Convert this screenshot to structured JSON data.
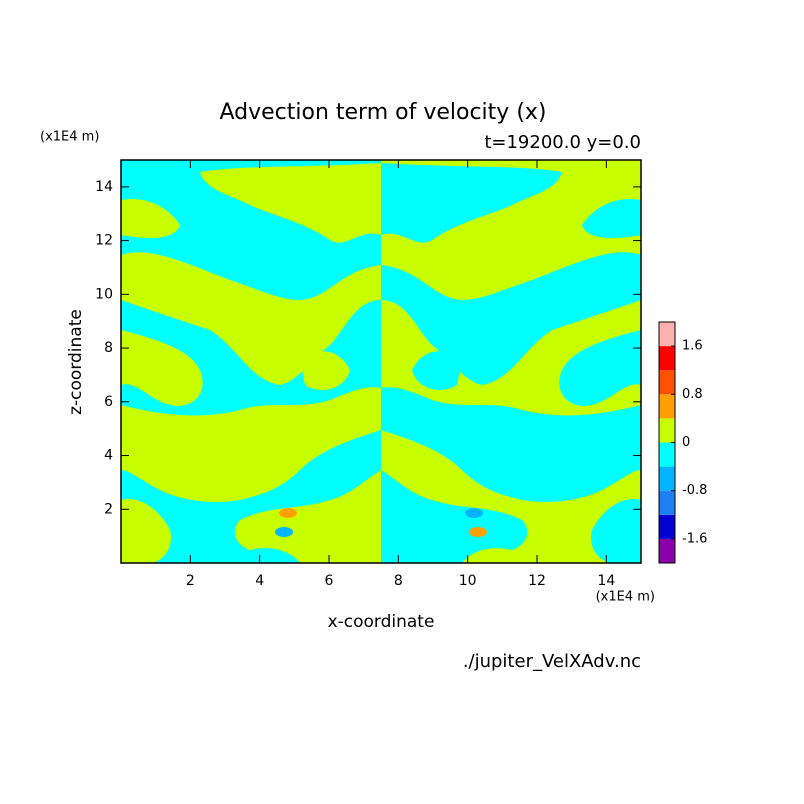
{
  "chart_data": {
    "type": "contour",
    "title": "Advection term of velocity (x)",
    "subtitle": "t=19200.0 y=0.0",
    "xlabel": "x-coordinate",
    "ylabel": "z-coordinate",
    "x_unit": "(x1E4 m)",
    "y_unit": "(x1E4 m)",
    "footer": "./jupiter_VelXAdv.nc",
    "xlim": [
      0,
      15
    ],
    "ylim": [
      0,
      15
    ],
    "xticks": [
      2,
      4,
      6,
      8,
      10,
      12,
      14
    ],
    "yticks": [
      2,
      4,
      6,
      8,
      10,
      12,
      14
    ],
    "levels": [
      -2.0,
      -1.6,
      -1.2,
      -0.8,
      -0.4,
      0,
      0.4,
      0.8,
      1.2,
      1.6,
      2.0
    ],
    "colors": [
      "#8a00a8",
      "#0000d0",
      "#1e7ff0",
      "#00b4ff",
      "#00ffff",
      "#c8ff00",
      "#ffa000",
      "#ff5000",
      "#ff0000",
      "#ffb0b0"
    ],
    "colorbar_ticks": [
      -1.6,
      -0.8,
      0,
      0.8,
      1.6
    ]
  }
}
